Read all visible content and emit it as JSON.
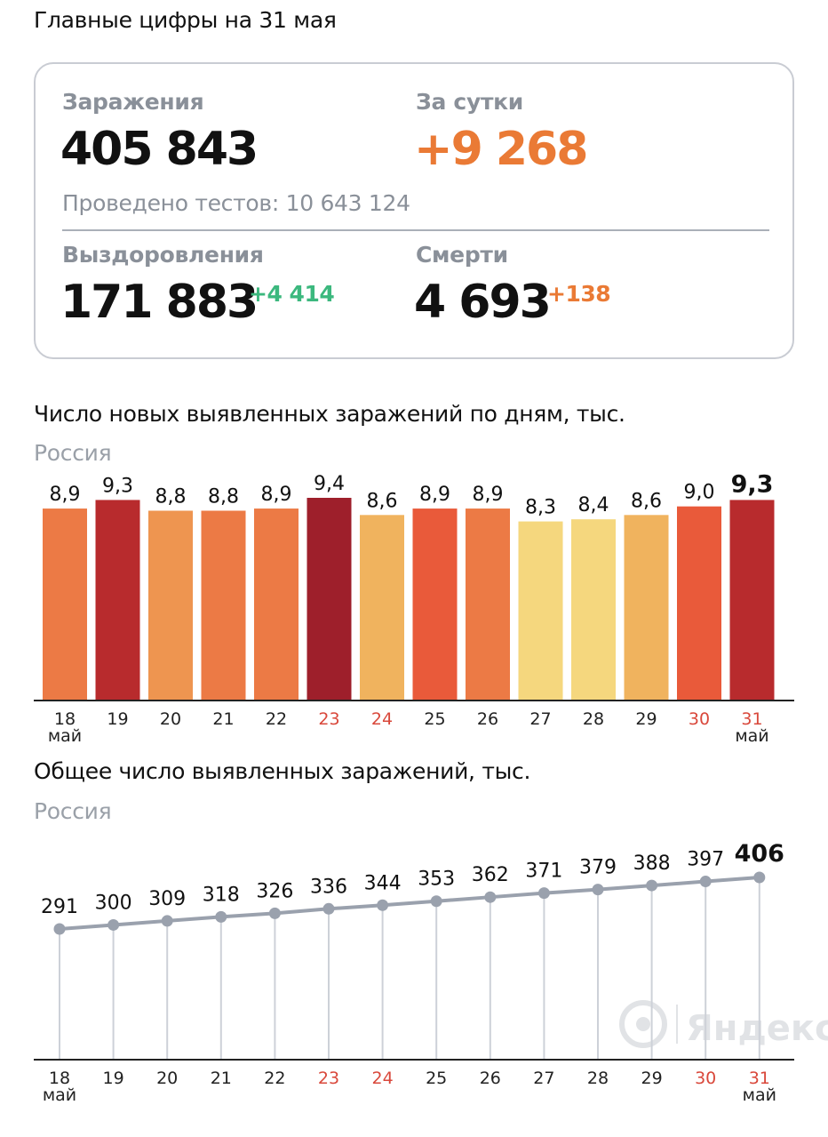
{
  "header": {
    "title": "Главные цифры на 31 мая"
  },
  "stats": {
    "infections_label": "Заражения",
    "infections_value": "405 843",
    "daily_label": "За сутки",
    "daily_value": "+9 268",
    "tests_text": "Проведено тестов: 10 643 124",
    "recovered_label": "Выздоровления",
    "recovered_value": "171 883",
    "recovered_delta": "+4 414",
    "deaths_label": "Смерти",
    "deaths_value": "4 693",
    "deaths_delta": "+138"
  },
  "colors": {
    "accent_orange": "#ea7a35",
    "accent_green": "#3cb87e",
    "muted_text": "#8a9099",
    "weekend_label": "#d9483b",
    "line": "#9aa1ad"
  },
  "chart_data": [
    {
      "type": "bar",
      "title": "Число новых выявленных заражений по дням, тыс.",
      "subtitle": "Россия",
      "categories": [
        "18",
        "19",
        "20",
        "21",
        "22",
        "23",
        "24",
        "25",
        "26",
        "27",
        "28",
        "29",
        "30",
        "31"
      ],
      "month_labels": {
        "first": "май",
        "last": "май"
      },
      "values": [
        8.9,
        9.3,
        8.8,
        8.8,
        8.9,
        9.4,
        8.6,
        8.9,
        8.9,
        8.3,
        8.4,
        8.6,
        9.0,
        9.3
      ],
      "value_labels": [
        "8,9",
        "9,3",
        "8,8",
        "8,8",
        "8,9",
        "9,4",
        "8,6",
        "8,9",
        "8,9",
        "8,3",
        "8,4",
        "8,6",
        "9,0",
        "9,3"
      ],
      "bar_colors": [
        "#ec7a45",
        "#b82b2d",
        "#ee9550",
        "#ec7a45",
        "#ec7a45",
        "#9e1f2b",
        "#f0b35e",
        "#e95a3a",
        "#ec7a45",
        "#f5d77e",
        "#f5d77e",
        "#f0b35e",
        "#e95a3a",
        "#b82b2d"
      ],
      "weekend_categories": [
        "23",
        "24",
        "30",
        "31"
      ]
    },
    {
      "type": "line",
      "title": "Общее число выявленных заражений, тыс.",
      "subtitle": "Россия",
      "categories": [
        "18",
        "19",
        "20",
        "21",
        "22",
        "23",
        "24",
        "25",
        "26",
        "27",
        "28",
        "29",
        "30",
        "31"
      ],
      "month_labels": {
        "first": "май",
        "last": "май"
      },
      "values": [
        291,
        300,
        309,
        318,
        326,
        336,
        344,
        353,
        362,
        371,
        379,
        388,
        397,
        406
      ],
      "weekend_categories": [
        "23",
        "24",
        "30",
        "31"
      ],
      "watermark": "Яндекс"
    }
  ]
}
